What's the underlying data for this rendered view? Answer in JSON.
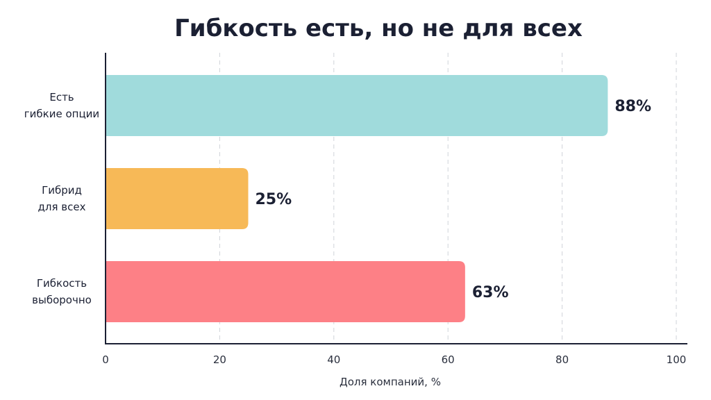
{
  "chart_data": {
    "type": "bar",
    "orientation": "horizontal",
    "title": "Гибкость есть, но не для всех",
    "xlabel": "Доля компаний, %",
    "ylabel": "",
    "xlim": [
      0,
      100
    ],
    "xticks": [
      0,
      20,
      40,
      60,
      80,
      100
    ],
    "grid": true,
    "categories": [
      [
        "Есть",
        "гибкие опции"
      ],
      [
        "Гибрид",
        "для всех"
      ],
      [
        "Гибкость",
        "выборочно"
      ]
    ],
    "values": [
      88,
      25,
      63
    ],
    "value_labels": [
      "88%",
      "25%",
      "63%"
    ],
    "colors": [
      "#a0dbdc",
      "#f7b957",
      "#fd8086"
    ]
  }
}
